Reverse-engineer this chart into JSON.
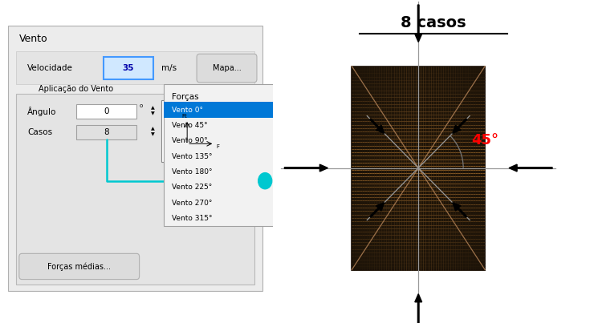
{
  "title": "8 casos",
  "angle_label": "45°",
  "bg_color": "#ffffff",
  "arrow_color": "#000000",
  "angle_color": "#ff0000",
  "building_dark": "#1e1408",
  "building_stripe_light": "#7a5c3a",
  "building_stripe_dark": "#1e1408",
  "building_diag_color": "#a07850",
  "axis_color": "#999999",
  "turq": "#00c8d0",
  "panel_left": {
    "title": "Vento",
    "velocity_label": "Velocidade",
    "velocity_value": "35",
    "velocity_unit": "m/s",
    "map_button": "Mapa...",
    "app_label": "Aplicação do Vento",
    "angle_label": "Ângulo",
    "angle_value": "0",
    "cases_label": "Casos",
    "cases_value": "8",
    "forces_button": "Forças médias...",
    "forces_list_title": "Forças",
    "forces_list": [
      "Vento 0°",
      "Vento 45°",
      "Vento 90°",
      "Vento 135°",
      "Vento 180°",
      "Vento 225°",
      "Vento 270°",
      "Vento 315°"
    ]
  }
}
